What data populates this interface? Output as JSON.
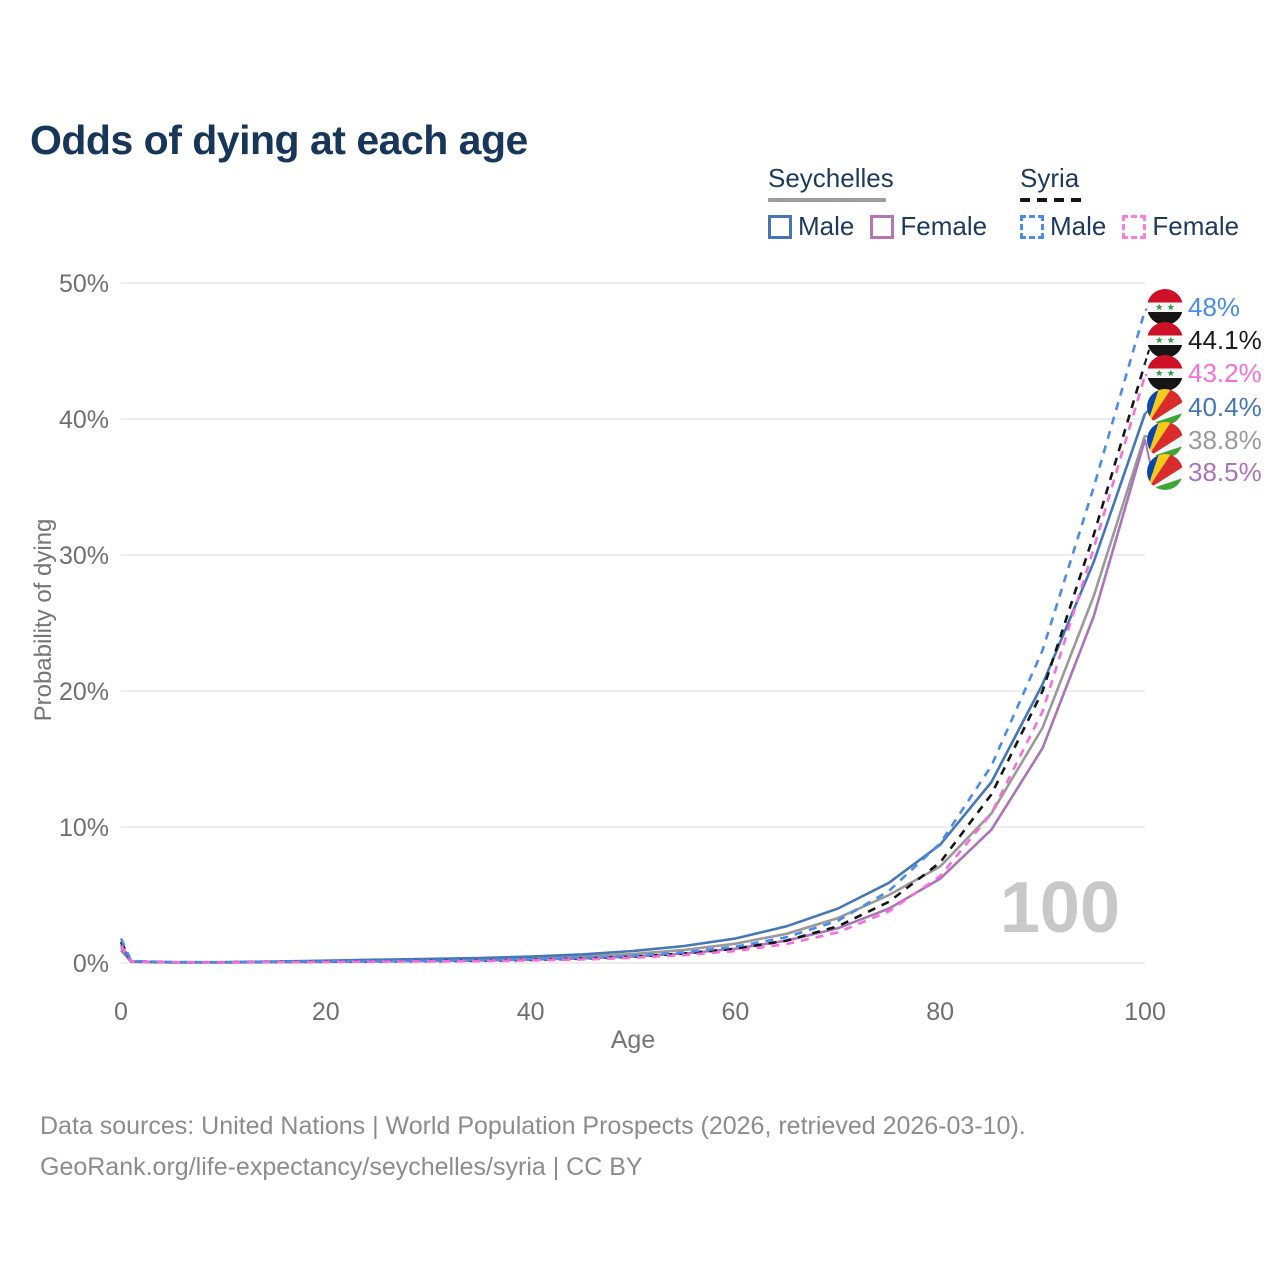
{
  "title": "Odds of dying at each age",
  "legend": {
    "groups": [
      {
        "country": "Seychelles",
        "line_style": "solid",
        "underline_color": "#9e9e9e",
        "items": [
          {
            "label": "Male",
            "color": "#4577b4"
          },
          {
            "label": "Female",
            "color": "#b577b3"
          }
        ]
      },
      {
        "country": "Syria",
        "line_style": "dashed",
        "underline_color": "#161616",
        "items": [
          {
            "label": "Male",
            "color": "#4a8ce8"
          },
          {
            "label": "Female",
            "color": "#fb7ee0"
          }
        ]
      }
    ]
  },
  "axes": {
    "y_label": "Probability of dying",
    "x_label": "Age",
    "y_ticks": [
      {
        "value": 0,
        "label": "0%"
      },
      {
        "value": 10,
        "label": "10%"
      },
      {
        "value": 20,
        "label": "20%"
      },
      {
        "value": 30,
        "label": "30%"
      },
      {
        "value": 40,
        "label": "40%"
      },
      {
        "value": 50,
        "label": "50%"
      }
    ],
    "x_ticks": [
      {
        "value": 0,
        "label": "0"
      },
      {
        "value": 20,
        "label": "20"
      },
      {
        "value": 40,
        "label": "40"
      },
      {
        "value": 60,
        "label": "60"
      },
      {
        "value": 80,
        "label": "80"
      },
      {
        "value": 100,
        "label": "100"
      }
    ]
  },
  "watermark": "100",
  "chart_data": {
    "type": "line",
    "title": "Odds of dying at each age",
    "xlabel": "Age",
    "ylabel": "Probability of dying (%)",
    "xlim": [
      0,
      100
    ],
    "ylim": [
      0,
      50
    ],
    "grid": "horizontal-only",
    "ages": [
      0,
      1,
      5,
      10,
      15,
      20,
      25,
      30,
      35,
      40,
      45,
      50,
      55,
      60,
      65,
      70,
      75,
      80,
      85,
      90,
      95,
      100
    ],
    "series": [
      {
        "name": "Syria Male",
        "country": "Syria",
        "sex": "Male",
        "style": "dashed",
        "color": "#4a8ce8",
        "flag": "syria",
        "end_label": "48%",
        "end_value": 48,
        "values": [
          1.8,
          0.15,
          0.06,
          0.05,
          0.08,
          0.12,
          0.15,
          0.17,
          0.21,
          0.27,
          0.37,
          0.52,
          0.78,
          1.2,
          1.9,
          3.1,
          5.3,
          8.8,
          14.5,
          23.0,
          35.0,
          48.0
        ]
      },
      {
        "name": "Syria Total",
        "country": "Syria",
        "sex": "Total",
        "style": "dashed",
        "color": "#161616",
        "flag": "syria",
        "end_label": "44.1%",
        "end_value": 44.1,
        "values": [
          1.55,
          0.13,
          0.05,
          0.05,
          0.07,
          0.1,
          0.12,
          0.14,
          0.17,
          0.23,
          0.32,
          0.46,
          0.7,
          1.05,
          1.65,
          2.7,
          4.5,
          7.4,
          12.4,
          20.0,
          31.5,
          44.1
        ]
      },
      {
        "name": "Syria Female",
        "country": "Syria",
        "sex": "Female",
        "style": "dashed",
        "color": "#f56fd9",
        "flag": "syria",
        "end_label": "43.2%",
        "end_value": 43.2,
        "values": [
          1.3,
          0.11,
          0.05,
          0.04,
          0.06,
          0.08,
          0.1,
          0.12,
          0.14,
          0.19,
          0.26,
          0.38,
          0.58,
          0.88,
          1.4,
          2.25,
          3.8,
          6.4,
          11.0,
          18.5,
          30.5,
          43.2
        ]
      },
      {
        "name": "Seychelles Male",
        "country": "Seychelles",
        "sex": "Male",
        "style": "solid",
        "color": "#4577b4",
        "flag": "seychelles",
        "end_label": "40.4%",
        "end_value": 40.4,
        "values": [
          1.35,
          0.12,
          0.06,
          0.06,
          0.1,
          0.17,
          0.24,
          0.3,
          0.37,
          0.47,
          0.63,
          0.88,
          1.25,
          1.8,
          2.7,
          4.0,
          5.9,
          8.7,
          13.3,
          20.5,
          29.5,
          40.4
        ]
      },
      {
        "name": "Seychelles Total",
        "country": "Seychelles",
        "sex": "Total",
        "style": "solid",
        "color": "#9a9a9a",
        "flag": "seychelles",
        "end_label": "38.8%",
        "end_value": 38.8,
        "values": [
          1.15,
          0.1,
          0.05,
          0.05,
          0.08,
          0.13,
          0.18,
          0.22,
          0.27,
          0.35,
          0.47,
          0.66,
          0.96,
          1.42,
          2.15,
          3.3,
          5.0,
          7.1,
          11.0,
          17.3,
          27.0,
          38.8
        ]
      },
      {
        "name": "Seychelles Female",
        "country": "Seychelles",
        "sex": "Female",
        "style": "solid",
        "color": "#ab74b8",
        "flag": "seychelles",
        "end_label": "38.5%",
        "end_value": 38.5,
        "values": [
          0.95,
          0.09,
          0.04,
          0.04,
          0.06,
          0.09,
          0.12,
          0.15,
          0.19,
          0.25,
          0.34,
          0.48,
          0.7,
          1.05,
          1.65,
          2.55,
          4.0,
          6.2,
          9.8,
          15.8,
          25.5,
          38.5
        ]
      }
    ],
    "flag_colors": {
      "syria": {
        "red": "#ce1126",
        "white": "#f4f4f4",
        "black": "#151515",
        "star_green": "#2f9e44"
      },
      "seychelles": {
        "blue": "#0a47a9",
        "yellow": "#fcd padded",
        "red": "#d92b2b",
        "white": "#f4f4f4",
        "green": "#3fa535"
      }
    }
  },
  "footer": {
    "line1": "Data sources: United Nations | World Population Prospects (2026, retrieved 2026-03-10).",
    "line2": "GeoRank.org/life-expectancy/seychelles/syria | CC BY"
  }
}
